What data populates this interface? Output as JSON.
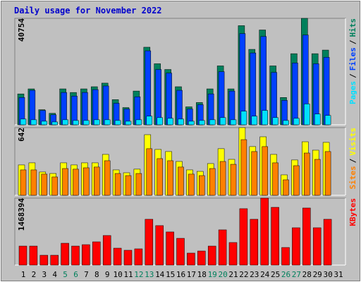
{
  "chart_data": [
    {
      "type": "bar",
      "title": "Daily usage for November 2022",
      "legend_separator": "/",
      "ylim": [
        0,
        40754
      ],
      "yticks": [
        40754
      ],
      "series": [
        {
          "name": "Pages",
          "color": "#00e0ff",
          "values": [
            2200,
            1925,
            1375,
            1100,
            1925,
            1650,
            1650,
            1925,
            1925,
            1650,
            1375,
            1925,
            3300,
            2750,
            2475,
            2200,
            1375,
            1650,
            1925,
            2750,
            1925,
            5225,
            3300,
            5500,
            2750,
            1650,
            2475,
            7975,
            4125,
            3575,
            null
          ]
        },
        {
          "name": "Files",
          "color": "#0040ff",
          "values": [
            10450,
            13200,
            5500,
            3850,
            12375,
            11000,
            12375,
            13475,
            14850,
            8250,
            6050,
            10725,
            28325,
            21175,
            19800,
            13200,
            6050,
            7700,
            11825,
            20350,
            12925,
            34925,
            27500,
            33825,
            20075,
            9350,
            23650,
            34375,
            23375,
            25850,
            null
          ]
        },
        {
          "name": "Hits",
          "color": "#00805c",
          "values": [
            11825,
            13750,
            5775,
            4400,
            13750,
            12375,
            13750,
            14575,
            15950,
            9625,
            6600,
            12925,
            29700,
            23375,
            21175,
            14575,
            6875,
            8525,
            13750,
            22550,
            13750,
            37950,
            28875,
            36300,
            22550,
            10450,
            27225,
            40754,
            27225,
            28600,
            null
          ]
        }
      ]
    },
    {
      "type": "bar",
      "legend_separator": "/",
      "ylim": [
        0,
        642
      ],
      "yticks": [
        642
      ],
      "series": [
        {
          "name": "Sites",
          "color": "#ff8000",
          "values": [
            241,
            241,
            201,
            174,
            254,
            248,
            261,
            268,
            328,
            207,
            187,
            207,
            442,
            348,
            328,
            268,
            201,
            187,
            254,
            321,
            294,
            528,
            415,
            462,
            308,
            147,
            281,
            401,
            341,
            415,
            null
          ]
        },
        {
          "name": "Visits",
          "color": "#ffff00",
          "values": [
            288,
            308,
            221,
            207,
            308,
            288,
            308,
            308,
            388,
            241,
            214,
            248,
            575,
            435,
            415,
            321,
            241,
            227,
            301,
            442,
            341,
            642,
            462,
            555,
            388,
            194,
            335,
            508,
            428,
            502,
            null
          ]
        }
      ]
    },
    {
      "type": "bar",
      "ylim": [
        0,
        1468394
      ],
      "yticks": [
        1468394
      ],
      "categories": [
        "1",
        "2",
        "3",
        "4",
        "5",
        "6",
        "7",
        "8",
        "9",
        "10",
        "11",
        "12",
        "13",
        "14",
        "15",
        "16",
        "17",
        "18",
        "19",
        "20",
        "21",
        "22",
        "23",
        "24",
        "25",
        "26",
        "27",
        "28",
        "29",
        "30",
        "31"
      ],
      "category_colors": [
        "#000000",
        "#000000",
        "#000000",
        "#000000",
        "#00805c",
        "#00805c",
        "#000000",
        "#000000",
        "#000000",
        "#000000",
        "#000000",
        "#00805c",
        "#00805c",
        "#000000",
        "#000000",
        "#000000",
        "#000000",
        "#000000",
        "#00805c",
        "#00805c",
        "#000000",
        "#000000",
        "#000000",
        "#000000",
        "#000000",
        "#00805c",
        "#00805c",
        "#000000",
        "#000000",
        "#000000",
        "#000000"
      ],
      "series": [
        {
          "name": "KBytes",
          "color": "#ff0000",
          "values": [
            417000,
            417000,
            216000,
            216000,
            479000,
            417000,
            448000,
            510000,
            649000,
            371000,
            325000,
            356000,
            1005000,
            866000,
            727000,
            587000,
            263000,
            309000,
            417000,
            773000,
            495000,
            1237000,
            1005000,
            1468394,
            1267000,
            386000,
            819000,
            1252000,
            819000,
            1005000,
            null
          ]
        }
      ]
    }
  ]
}
